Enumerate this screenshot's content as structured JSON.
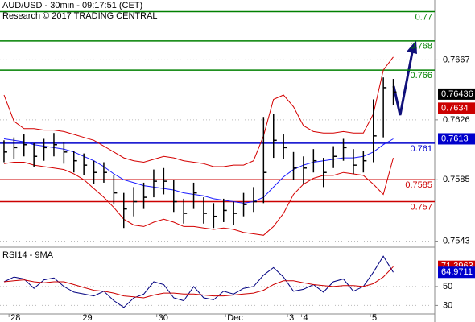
{
  "chart_data": {
    "type": "ohlc",
    "title": "AUD/USD - 30min - 09:17:51 (CET)",
    "subtitle": "Research © 2017 TRADING CENTRAL",
    "xlim": [
      -0.4,
      43.15
    ],
    "xticks": [
      {
        "value": 0.5,
        "label": "28"
      },
      {
        "value": 7.7,
        "label": "29"
      },
      {
        "value": 15.3,
        "label": "30"
      },
      {
        "value": 22.2,
        "label": "Dec"
      },
      {
        "value": 28.4,
        "label": "3"
      },
      {
        "value": 29.8,
        "label": "4"
      },
      {
        "value": 36.7,
        "label": "5"
      }
    ],
    "ylim": [
      0.754,
      0.7708
    ],
    "yticks": [
      0.7543,
      0.7585,
      0.7626,
      0.7667
    ],
    "grid": true,
    "bar_color": "#000000",
    "high": [
      0.7612,
      0.7614,
      0.7616,
      0.761,
      0.7613,
      0.7617,
      0.7611,
      0.7605,
      0.7603,
      0.7598,
      0.7597,
      0.7588,
      0.7576,
      0.758,
      0.7583,
      0.7592,
      0.7593,
      0.7585,
      0.7572,
      0.7583,
      0.7573,
      0.7569,
      0.7572,
      0.757,
      0.7576,
      0.758,
      0.7628,
      0.763,
      0.7616,
      0.7604,
      0.7601,
      0.7606,
      0.76,
      0.7608,
      0.7613,
      0.7606,
      0.7605,
      0.764,
      0.7655,
      0.7654
    ],
    "low": [
      0.7597,
      0.7599,
      0.7601,
      0.7594,
      0.7598,
      0.7601,
      0.7596,
      0.759,
      0.7588,
      0.7582,
      0.7583,
      0.7568,
      0.7552,
      0.756,
      0.7565,
      0.7573,
      0.7575,
      0.7563,
      0.7555,
      0.7565,
      0.7555,
      0.7552,
      0.7556,
      0.7554,
      0.756,
      0.7563,
      0.7569,
      0.76,
      0.7599,
      0.7585,
      0.7582,
      0.759,
      0.758,
      0.7593,
      0.7598,
      0.7589,
      0.759,
      0.7597,
      0.7614,
      0.7636
    ],
    "close": [
      0.7604,
      0.7607,
      0.7609,
      0.7601,
      0.7607,
      0.7609,
      0.7604,
      0.7598,
      0.7595,
      0.759,
      0.759,
      0.7576,
      0.7565,
      0.757,
      0.7573,
      0.7584,
      0.7584,
      0.757,
      0.7562,
      0.7576,
      0.7562,
      0.756,
      0.7564,
      0.7562,
      0.7568,
      0.757,
      0.759,
      0.7612,
      0.7607,
      0.7593,
      0.7593,
      0.7598,
      0.759,
      0.7601,
      0.7607,
      0.7595,
      0.7598,
      0.7615,
      0.7648,
      0.7645
    ],
    "lines": [
      {
        "color": "#d40000",
        "values": [
          0.7643,
          0.7625,
          0.762,
          0.762,
          0.7619,
          0.7619,
          0.7618,
          0.7616,
          0.7614,
          0.7612,
          0.7608,
          0.7604,
          0.76,
          0.7598,
          0.7597,
          0.7599,
          0.7601,
          0.76,
          0.7598,
          0.7597,
          0.7596,
          0.7594,
          0.7594,
          0.7595,
          0.7595,
          0.7598,
          0.7615,
          0.764,
          0.7643,
          0.7635,
          0.7622,
          0.7618,
          0.7617,
          0.7617,
          0.7618,
          0.7617,
          0.7617,
          0.763,
          0.766,
          0.7669
        ]
      },
      {
        "color": "#d40000",
        "values": [
          0.7596,
          0.7597,
          0.7597,
          0.7595,
          0.7594,
          0.7593,
          0.7592,
          0.7589,
          0.7585,
          0.7579,
          0.7573,
          0.7566,
          0.7558,
          0.7554,
          0.7553,
          0.7556,
          0.7558,
          0.7556,
          0.7553,
          0.7553,
          0.7552,
          0.7551,
          0.7552,
          0.7551,
          0.7549,
          0.7548,
          0.7547,
          0.7553,
          0.7562,
          0.7575,
          0.7582,
          0.7586,
          0.7588,
          0.7588,
          0.759,
          0.7589,
          0.7588,
          0.7582,
          0.7575,
          0.76
        ]
      },
      {
        "color": "#1a1aff",
        "values": [
          0.7613,
          0.7612,
          0.7611,
          0.7609,
          0.7608,
          0.7607,
          0.7606,
          0.7604,
          0.7601,
          0.7598,
          0.7594,
          0.7589,
          0.7585,
          0.7583,
          0.7581,
          0.758,
          0.7579,
          0.7578,
          0.7576,
          0.7575,
          0.7574,
          0.7572,
          0.7571,
          0.757,
          0.7569,
          0.757,
          0.7573,
          0.758,
          0.7587,
          0.7592,
          0.7595,
          0.7597,
          0.7598,
          0.7599,
          0.76,
          0.76,
          0.7601,
          0.7604,
          0.7609,
          0.7613
        ]
      }
    ],
    "levels": [
      {
        "value": 0.77,
        "color": "#008000"
      },
      {
        "value": 0.768,
        "color": "#008000"
      },
      {
        "value": 0.766,
        "color": "#008000"
      },
      {
        "value": 0.761,
        "color": "#0000cc"
      },
      {
        "value": 0.7585,
        "color": "#cc0000"
      },
      {
        "value": 0.757,
        "color": "#cc0000"
      }
    ],
    "markers": [
      {
        "value": 0.76436,
        "color": "#000000"
      },
      {
        "value": 0.7634,
        "color": "#cc0000"
      },
      {
        "value": 0.7613,
        "color": "#0000cc"
      }
    ],
    "indicator": {
      "title": "RSI14 - 9MA",
      "ylim": [
        21,
        89
      ],
      "yticks": [
        30,
        50
      ],
      "series": [
        {
          "color": "#000080",
          "values": [
            55,
            60,
            58,
            48,
            57,
            59,
            50,
            44,
            42,
            40,
            45,
            35,
            28,
            38,
            42,
            55,
            52,
            38,
            35,
            50,
            38,
            36,
            45,
            42,
            48,
            50,
            62,
            70,
            60,
            45,
            47,
            52,
            44,
            55,
            58,
            45,
            50,
            65,
            82,
            65
          ]
        },
        {
          "color": "#cc0000",
          "values": [
            55,
            56,
            57,
            55,
            54,
            55,
            55,
            52,
            49,
            46,
            45,
            43,
            40,
            39,
            38,
            41,
            43,
            43,
            42,
            42,
            41,
            40,
            40,
            41,
            42,
            43,
            46,
            52,
            56,
            56,
            54,
            52,
            51,
            50,
            51,
            51,
            50,
            53,
            60,
            71
          ]
        }
      ],
      "markers": [
        {
          "value": 71.3963,
          "color": "#cc0000"
        },
        {
          "value": 64.9711,
          "color": "#0000cc"
        }
      ]
    }
  }
}
